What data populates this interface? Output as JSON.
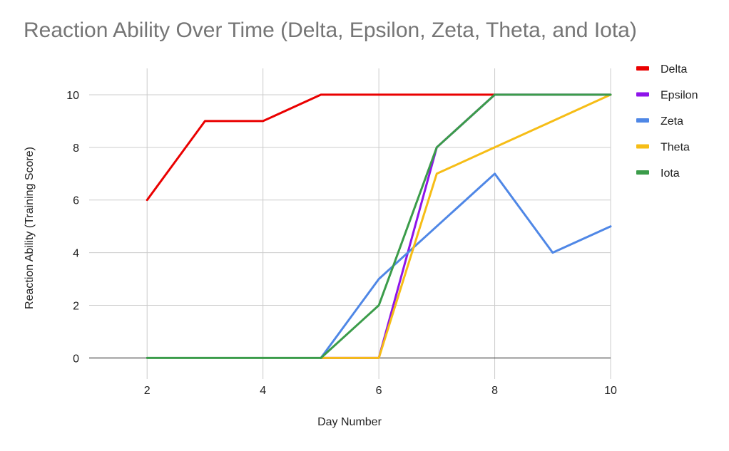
{
  "chart_data": {
    "type": "line",
    "title": "Reaction Ability Over Time (Delta, Epsilon, Zeta, Theta, and Iota)",
    "xlabel": "Day Number",
    "ylabel": "Reaction Ability (Training Score)",
    "xlim": [
      1,
      10
    ],
    "ylim": [
      -0.8,
      11
    ],
    "xticks": [
      2,
      4,
      6,
      8,
      10
    ],
    "yticks": [
      0,
      2,
      4,
      6,
      8,
      10
    ],
    "grid": true,
    "legend_position": "right",
    "series": [
      {
        "name": "Delta",
        "color": "#ea0000",
        "x": [
          2,
          3,
          4,
          5,
          6,
          7,
          8
        ],
        "y": [
          6,
          9,
          9,
          10,
          10,
          10,
          10
        ]
      },
      {
        "name": "Epsilon",
        "color": "#8e14ea",
        "x": [
          5,
          6,
          7,
          8,
          9,
          10
        ],
        "y": [
          0,
          0,
          8,
          10,
          10,
          10
        ]
      },
      {
        "name": "Zeta",
        "color": "#4f87e6",
        "x": [
          5,
          6,
          7,
          8,
          9,
          10
        ],
        "y": [
          0,
          3,
          5,
          7,
          4,
          5
        ]
      },
      {
        "name": "Theta",
        "color": "#f6bd16",
        "x": [
          5,
          6,
          7,
          8,
          9,
          10
        ],
        "y": [
          0,
          0,
          7,
          8,
          9,
          10
        ]
      },
      {
        "name": "Iota",
        "color": "#3b9c4a",
        "x": [
          2,
          3,
          4,
          5,
          6,
          7,
          8,
          9,
          10
        ],
        "y": [
          0,
          0,
          0,
          0,
          2,
          8,
          10,
          10,
          10
        ]
      }
    ]
  }
}
